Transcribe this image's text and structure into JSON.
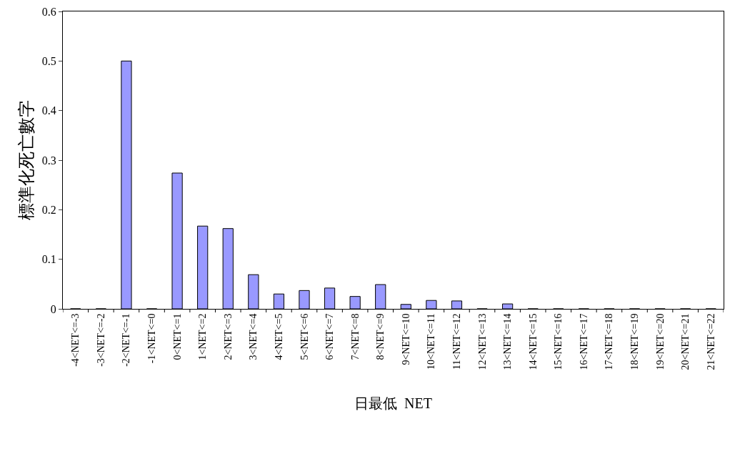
{
  "chart_data": {
    "type": "bar",
    "xlabel": "日最低  NET",
    "ylabel": "標準化死亡數字",
    "categories": [
      "-4<NET<=-3",
      "-3<NET<=-2",
      "-2<NET<=-1",
      "-1<NET<=0",
      "0<NET<=1",
      "1<NET<=2",
      "2<NET<=3",
      "3<NET<=4",
      "4<NET<=5",
      "5<NET<=6",
      "6<NET<=7",
      "7<NET<=8",
      "8<NET<=9",
      "9<NET<=10",
      "10<NET<=11",
      "11<NET<=12",
      "12<NET<=13",
      "13<NET<=14",
      "14<NET<=15",
      "15<NET<=16",
      "16<NET<=17",
      "17<NET<=18",
      "18<NET<=19",
      "19<NET<=20",
      "20<NET<=21",
      "21<NET<=22"
    ],
    "values": [
      0,
      0,
      0.5,
      0,
      0.274,
      0.167,
      0.162,
      0.069,
      0.03,
      0.037,
      0.042,
      0.025,
      0.049,
      0.009,
      0.017,
      0.016,
      0,
      0.01,
      0,
      0,
      0,
      0,
      0,
      0,
      0,
      0
    ],
    "color": "#9999ff",
    "ylim": [
      0,
      0.6
    ],
    "yticks": [
      0,
      0.1,
      0.2,
      0.3,
      0.4,
      0.5,
      0.6
    ],
    "grid": false
  }
}
